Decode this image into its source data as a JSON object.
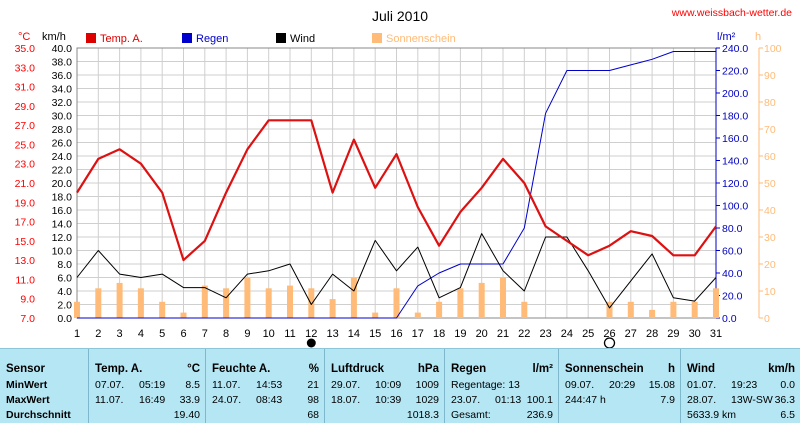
{
  "site": "www.weissbach-wetter.de",
  "chart_data": {
    "type": "line",
    "title": "Juli 2010",
    "x": [
      1,
      2,
      3,
      4,
      5,
      6,
      7,
      8,
      9,
      10,
      11,
      12,
      13,
      14,
      15,
      16,
      17,
      18,
      19,
      20,
      21,
      22,
      23,
      24,
      25,
      26,
      27,
      28,
      29,
      30,
      31
    ],
    "x_ticks": [
      "1",
      "2",
      "3",
      "4",
      "5",
      "6",
      "7",
      "8",
      "9",
      "10",
      "11",
      "12",
      "13",
      "14",
      "15",
      "16",
      "17",
      "18",
      "19",
      "20",
      "21",
      "22",
      "23",
      "24",
      "25",
      "26",
      "27",
      "28",
      "29",
      "30",
      "31"
    ],
    "moon_symbols": [
      {
        "day": 12,
        "phase": "new"
      },
      {
        "day": 26,
        "phase": "full"
      }
    ],
    "axes": {
      "temp": {
        "unit": "°C",
        "range": [
          7.0,
          35.0
        ],
        "ticks": [
          "7.0",
          "9.0",
          "11.0",
          "13.0",
          "15.0",
          "17.0",
          "19.0",
          "21.0",
          "23.0",
          "25.0",
          "27.0",
          "29.0",
          "31.0",
          "33.0",
          "35.0"
        ],
        "color": "#ff0000"
      },
      "wind": {
        "unit": "km/h",
        "range": [
          0.0,
          40.0
        ],
        "ticks": [
          "0.0",
          "2.0",
          "4.0",
          "6.0",
          "8.0",
          "10.0",
          "12.0",
          "14.0",
          "16.0",
          "18.0",
          "20.0",
          "22.0",
          "24.0",
          "26.0",
          "28.0",
          "30.0",
          "32.0",
          "34.0",
          "36.0",
          "38.0",
          "40.0"
        ],
        "color": "#000000"
      },
      "rain": {
        "unit": "l/m²",
        "range": [
          0.0,
          240.0
        ],
        "ticks": [
          "0.0",
          "20.0",
          "40.0",
          "60.0",
          "80.0",
          "100.0",
          "120.0",
          "140.0",
          "160.0",
          "180.0",
          "200.0",
          "220.0",
          "240.0"
        ],
        "color": "#0000c0"
      },
      "sun": {
        "unit": "h",
        "range": [
          0,
          100
        ],
        "ticks": [
          "0",
          "10",
          "20",
          "30",
          "40",
          "50",
          "60",
          "70",
          "80",
          "90",
          "100"
        ],
        "color": "#ffbb77"
      }
    },
    "series": [
      {
        "name": "Temp. A.",
        "axis": "temp",
        "color": "#ff0000",
        "values": [
          20.0,
          23.5,
          24.5,
          23.0,
          20.0,
          13.0,
          15.0,
          20.0,
          24.5,
          27.5,
          27.5,
          27.5,
          20.0,
          25.5,
          20.5,
          24.0,
          18.5,
          14.5,
          18.0,
          20.5,
          23.5,
          21.0,
          16.5,
          15.0,
          13.5,
          14.5,
          16.0,
          15.5,
          13.5,
          13.5,
          16.5
        ]
      },
      {
        "name": "Regen",
        "axis": "rain",
        "color": "#0000cc",
        "values": [
          0,
          0,
          0,
          0,
          0,
          0,
          0,
          0,
          0,
          0,
          0,
          0,
          0,
          0,
          0,
          0,
          0,
          0,
          0,
          0,
          0,
          0,
          0,
          0,
          0,
          0,
          0,
          0,
          0,
          0,
          0
        ]
      },
      {
        "name": "Wind",
        "axis": "wind",
        "color": "#000000",
        "values": [
          6.0,
          10.0,
          6.5,
          6.0,
          6.5,
          4.5,
          4.5,
          3.0,
          6.5,
          7.0,
          8.0,
          2.0,
          6.5,
          4.0,
          11.5,
          7.0,
          10.5,
          3.0,
          4.5,
          12.5,
          7.0,
          4.0,
          12.0,
          12.0,
          7.0,
          1.5,
          5.5,
          9.5,
          3.0,
          2.5,
          6.0
        ]
      },
      {
        "name": "Sonnenschein",
        "axis": "sun",
        "color": "#ffbb77",
        "type": "bar",
        "values": [
          6,
          11,
          13,
          11,
          6,
          2,
          12,
          11,
          15,
          11,
          12,
          11,
          7,
          15,
          2,
          11,
          2,
          6,
          11,
          13,
          15,
          6,
          0,
          0,
          0,
          6,
          6,
          3,
          6,
          6,
          11
        ]
      }
    ],
    "rain_cumulative": [
      0,
      0,
      0,
      0,
      0,
      0,
      0,
      0,
      0,
      0,
      0,
      0,
      0,
      0,
      0,
      0,
      28.5,
      40.0,
      48.0,
      48.0,
      48.0,
      80.0,
      182.0,
      220.0,
      220.0,
      220.0,
      225.0,
      230.0,
      236.9,
      236.9,
      236.9
    ]
  },
  "stats": {
    "columns": [
      {
        "title": "Sensor",
        "unit": "",
        "rows": [
          "MinWert",
          "MaxWert",
          "Durchschnitt"
        ]
      },
      {
        "title": "Temp. A.",
        "unit": "°C",
        "rows": [
          {
            "date": "07.07.",
            "time": "05:19",
            "value": "8.5"
          },
          {
            "date": "11.07.",
            "time": "16:49",
            "value": "33.9"
          },
          {
            "date": "",
            "time": "",
            "value": "19.40"
          }
        ]
      },
      {
        "title": "Feuchte A.",
        "unit": "%",
        "rows": [
          {
            "date": "11.07.",
            "time": "14:53",
            "value": "21"
          },
          {
            "date": "24.07.",
            "time": "08:43",
            "value": "98"
          },
          {
            "date": "",
            "time": "",
            "value": "68"
          }
        ]
      },
      {
        "title": "Luftdruck",
        "unit": "hPa",
        "rows": [
          {
            "date": "29.07.",
            "time": "10:09",
            "value": "1009"
          },
          {
            "date": "18.07.",
            "time": "10:39",
            "value": "1029"
          },
          {
            "date": "",
            "time": "",
            "value": "1018.3"
          }
        ]
      },
      {
        "title": "Regen",
        "unit": "l/m²",
        "rows": [
          {
            "date": "Regentage: 13",
            "time": "",
            "value": ""
          },
          {
            "date": "23.07.",
            "time": "01:13",
            "value": "100.1"
          },
          {
            "date": "Gesamt:",
            "time": "",
            "value": "236.9"
          }
        ]
      },
      {
        "title": "Sonnenschein",
        "unit": "h",
        "rows": [
          {
            "date": "09.07.",
            "time": "20:29",
            "value": "15.08"
          },
          {
            "date": "244:47 h",
            "time": "",
            "value": "7.9"
          },
          {
            "date": "",
            "time": "",
            "value": ""
          }
        ]
      },
      {
        "title": "Wind",
        "unit": "km/h",
        "rows": [
          {
            "date": "01.07.",
            "time": "19:23",
            "value": "0.0"
          },
          {
            "date": "28.07.",
            "time": "13W-SW",
            "value": "36.3"
          },
          {
            "date": "5633.9 km",
            "time": "",
            "value": "6.5"
          }
        ]
      }
    ]
  }
}
